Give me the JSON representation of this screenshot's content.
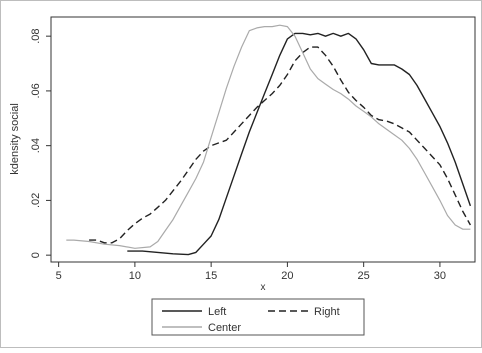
{
  "chart_data": {
    "type": "line",
    "title": "",
    "xlabel": "x",
    "ylabel": "kdensity social",
    "xlim": [
      4.5,
      32.3
    ],
    "ylim": [
      -0.0025,
      0.087
    ],
    "x_ticks": [
      5,
      10,
      15,
      20,
      25,
      30
    ],
    "x_tick_labels": [
      "5",
      "10",
      "15",
      "20",
      "25",
      "30"
    ],
    "y_ticks": [
      0,
      0.02,
      0.04,
      0.06,
      0.08
    ],
    "y_tick_labels": [
      "0",
      ".02",
      ".04",
      ".06",
      ".08"
    ],
    "grid": false,
    "legend_position": "bottom",
    "series": [
      {
        "name": "Left",
        "style": "solid",
        "color": "#222222",
        "x": [
          9.5,
          10.5,
          11.5,
          12.5,
          13.5,
          14,
          14.5,
          15,
          15.5,
          16,
          16.5,
          17,
          17.5,
          18,
          18.5,
          19,
          19.5,
          20,
          20.5,
          21,
          21.5,
          22,
          22.5,
          23,
          23.5,
          24,
          24.5,
          25,
          25.5,
          26,
          26.5,
          27,
          27.5,
          28,
          28.5,
          29,
          29.5,
          30,
          30.5,
          31,
          31.5,
          32
        ],
        "y": [
          0.0015,
          0.0015,
          0.001,
          0.0005,
          0.0002,
          0.001,
          0.004,
          0.007,
          0.013,
          0.021,
          0.029,
          0.037,
          0.045,
          0.052,
          0.059,
          0.066,
          0.073,
          0.079,
          0.081,
          0.081,
          0.0805,
          0.081,
          0.08,
          0.081,
          0.08,
          0.081,
          0.079,
          0.075,
          0.07,
          0.0695,
          0.0695,
          0.0695,
          0.068,
          0.066,
          0.062,
          0.057,
          0.052,
          0.047,
          0.041,
          0.034,
          0.026,
          0.018
        ]
      },
      {
        "name": "Right",
        "style": "dashed",
        "color": "#222222",
        "x": [
          7,
          7.5,
          8,
          8.5,
          9,
          9.5,
          10,
          10.5,
          11,
          11.5,
          12,
          12.5,
          13,
          13.5,
          14,
          14.5,
          15,
          15.5,
          16,
          16.5,
          17,
          17.5,
          18,
          18.5,
          19,
          19.5,
          20,
          20.5,
          21,
          21.5,
          22,
          22.5,
          23,
          23.5,
          24,
          24.5,
          25,
          25.5,
          26,
          26.5,
          27,
          27.5,
          28,
          28.5,
          29,
          29.5,
          30,
          30.5,
          31,
          31.5,
          32
        ],
        "y": [
          0.0055,
          0.0055,
          0.0045,
          0.0045,
          0.006,
          0.009,
          0.0115,
          0.0135,
          0.015,
          0.0175,
          0.02,
          0.0235,
          0.027,
          0.031,
          0.035,
          0.038,
          0.04,
          0.041,
          0.042,
          0.045,
          0.048,
          0.051,
          0.054,
          0.0565,
          0.059,
          0.062,
          0.066,
          0.071,
          0.074,
          0.076,
          0.076,
          0.073,
          0.069,
          0.064,
          0.0595,
          0.0565,
          0.054,
          0.051,
          0.0495,
          0.049,
          0.048,
          0.0465,
          0.045,
          0.042,
          0.039,
          0.036,
          0.033,
          0.028,
          0.022,
          0.016,
          0.011
        ]
      },
      {
        "name": "Center",
        "style": "solid",
        "color": "#aaaaaa",
        "x": [
          5.5,
          6,
          7,
          8,
          9,
          10,
          11,
          11.5,
          12,
          12.5,
          13,
          13.5,
          14,
          14.5,
          15,
          15.5,
          16,
          16.5,
          17,
          17.5,
          18,
          18.5,
          19,
          19.5,
          20,
          20.5,
          21,
          21.5,
          22,
          22.5,
          23,
          23.5,
          24,
          24.5,
          25,
          25.5,
          26,
          26.5,
          27,
          27.5,
          28,
          28.5,
          29,
          29.5,
          30,
          30.5,
          31,
          31.5,
          32
        ],
        "y": [
          0.0055,
          0.0055,
          0.005,
          0.004,
          0.0035,
          0.0025,
          0.003,
          0.005,
          0.009,
          0.013,
          0.018,
          0.023,
          0.028,
          0.034,
          0.043,
          0.052,
          0.061,
          0.069,
          0.076,
          0.082,
          0.083,
          0.0835,
          0.0835,
          0.084,
          0.0835,
          0.08,
          0.074,
          0.068,
          0.0645,
          0.0625,
          0.0605,
          0.059,
          0.057,
          0.0545,
          0.0525,
          0.0505,
          0.048,
          0.046,
          0.044,
          0.042,
          0.039,
          0.035,
          0.03,
          0.025,
          0.02,
          0.0145,
          0.011,
          0.0095,
          0.0095
        ]
      }
    ]
  }
}
